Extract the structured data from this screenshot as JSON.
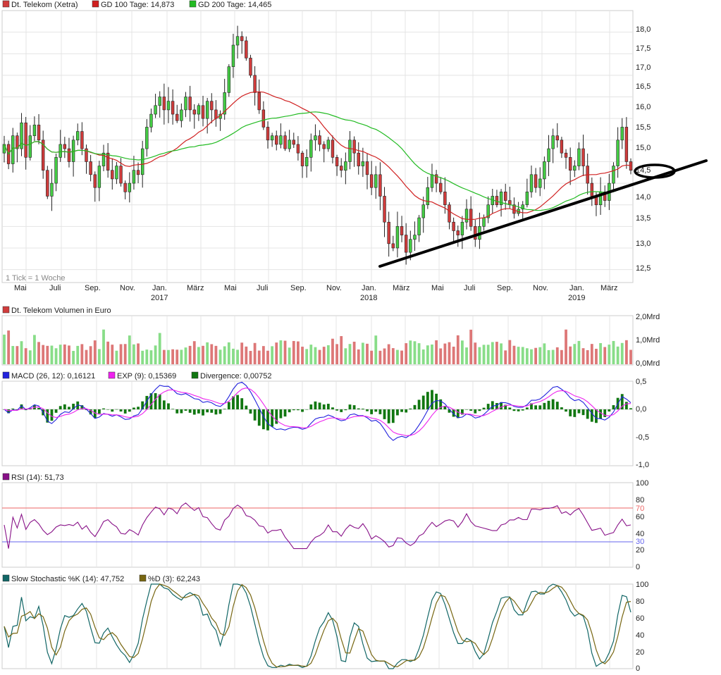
{
  "chart_data": [
    {
      "type": "candlestick",
      "legend": [
        {
          "label": "Dt. Telekom (Xetra)",
          "color": "#d03c3c"
        },
        {
          "label": "GD 100 Tage: 14,873",
          "color": "#d02020"
        },
        {
          "label": "GD 200 Tage: 14,465",
          "color": "#22bb22"
        }
      ],
      "note": "1 Tick = 1 Woche",
      "yticks": [
        "18,0",
        "17,5",
        "17,0",
        "16,5",
        "16,0",
        "15,5",
        "15,0",
        "14,5",
        "14,0",
        "13,5",
        "13,0",
        "12,5"
      ],
      "ylim": [
        12.2,
        18.5
      ],
      "x_month_labels": [
        "Mai",
        "Juli",
        "Sep.",
        "Nov.",
        "Jan.",
        "März",
        "Mai",
        "Juli",
        "Sep.",
        "Nov.",
        "Jan.",
        "März",
        "Mai",
        "Juli",
        "Sep.",
        "Nov.",
        "Jan.",
        "März"
      ],
      "x_year_labels": [
        {
          "label": "2017",
          "at": 4
        },
        {
          "label": "2018",
          "at": 10
        },
        {
          "label": "2019",
          "at": 16
        }
      ],
      "weekly_close": [
        15.4,
        14.95,
        15.6,
        15.3,
        15.9,
        15.1,
        15.6,
        15.85,
        15.5,
        14.8,
        14.2,
        14.5,
        15.1,
        15.4,
        15.3,
        15.0,
        15.5,
        15.7,
        15.3,
        15.0,
        14.7,
        14.4,
        14.9,
        15.2,
        14.8,
        14.6,
        14.9,
        14.5,
        14.3,
        14.5,
        14.8,
        14.7,
        15.3,
        15.8,
        16.1,
        16.3,
        16.5,
        16.2,
        16.4,
        16.1,
        15.95,
        16.2,
        16.5,
        16.2,
        16.1,
        16.3,
        16.0,
        16.4,
        16.2,
        16.0,
        16.1,
        16.6,
        17.2,
        17.7,
        17.9,
        17.8,
        17.4,
        17.0,
        16.6,
        16.2,
        15.8,
        15.5,
        15.6,
        15.4,
        15.6,
        15.3,
        15.5,
        15.4,
        15.2,
        14.9,
        15.1,
        15.5,
        15.6,
        15.4,
        15.3,
        15.5,
        15.1,
        14.9,
        14.8,
        15.0,
        15.5,
        15.2,
        14.9,
        15.0,
        14.7,
        14.4,
        14.7,
        14.2,
        13.6,
        13.1,
        13.0,
        13.5,
        13.3,
        12.9,
        13.2,
        13.3,
        13.7,
        14.0,
        14.4,
        14.7,
        14.5,
        14.3,
        14.0,
        13.6,
        13.4,
        13.3,
        13.6,
        13.9,
        13.5,
        13.2,
        13.5,
        13.7,
        14.0,
        14.2,
        14.0,
        14.3,
        14.1,
        14.0,
        13.8,
        13.9,
        14.0,
        14.3,
        14.7,
        14.4,
        14.6,
        15.0,
        15.3,
        15.6,
        15.5,
        15.2,
        15.1,
        14.8,
        14.9,
        15.3,
        14.9,
        14.5,
        14.2,
        14.0,
        14.3,
        14.1,
        14.5,
        14.9,
        15.5,
        15.8,
        15.0,
        14.8
      ]
    },
    {
      "type": "bar",
      "legend": [
        {
          "label": "Dt. Telekom Volumen in Euro",
          "color": "#d03c3c"
        }
      ],
      "yticks": [
        "2,0Mrd",
        "1,0Mrd",
        "0,0Mrd"
      ],
      "ylim": [
        0,
        2.0
      ]
    },
    {
      "type": "line",
      "legend": [
        {
          "label": "MACD (26, 12): 0,16121",
          "color": "#2222dd"
        },
        {
          "label": "EXP (9): 0,15369",
          "color": "#ee22ee"
        },
        {
          "label": "Divergence: 0,00752",
          "color": "#117711"
        }
      ],
      "yticks": [
        "0,5",
        "0,0",
        "-0,5",
        "-1,0"
      ],
      "ylim": [
        -1.0,
        0.5
      ]
    },
    {
      "type": "line",
      "legend": [
        {
          "label": "RSI (14): 51,73",
          "color": "#881188"
        }
      ],
      "yticks": [
        "100",
        "80",
        "60",
        "40",
        "20",
        "0"
      ],
      "levels": [
        {
          "label": "70",
          "color": "#ee6666"
        },
        {
          "label": "30",
          "color": "#6666ee"
        }
      ],
      "ylim": [
        0,
        100
      ]
    },
    {
      "type": "line",
      "legend": [
        {
          "label": "Slow Stochastic %K (14): 47,752",
          "color": "#116666"
        },
        {
          "label": "%D (3): 62,243",
          "color": "#776611"
        }
      ],
      "yticks": [
        "100",
        "80",
        "60",
        "40",
        "20",
        "0"
      ],
      "ylim": [
        0,
        100
      ]
    }
  ]
}
